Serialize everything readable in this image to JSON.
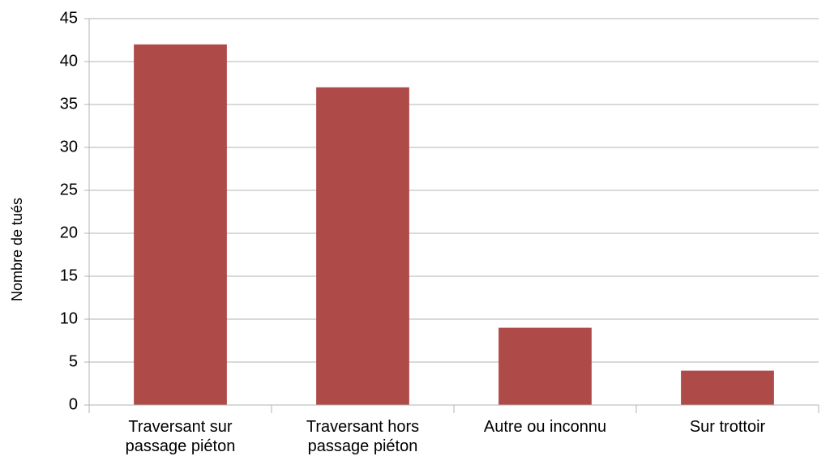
{
  "chart_data": {
    "type": "bar",
    "y_label": "Nombre de tués",
    "categories": [
      "Traversant sur passage piéton",
      "Traversant hors passage piéton",
      "Autre ou inconnu",
      "Sur trottoir"
    ],
    "values": [
      42,
      37,
      9,
      4
    ],
    "color": "#ae4a47",
    "ylim": [
      0,
      45
    ],
    "yticks": [
      0,
      5,
      10,
      15,
      20,
      25,
      30,
      35,
      40,
      45
    ],
    "grid": true
  }
}
